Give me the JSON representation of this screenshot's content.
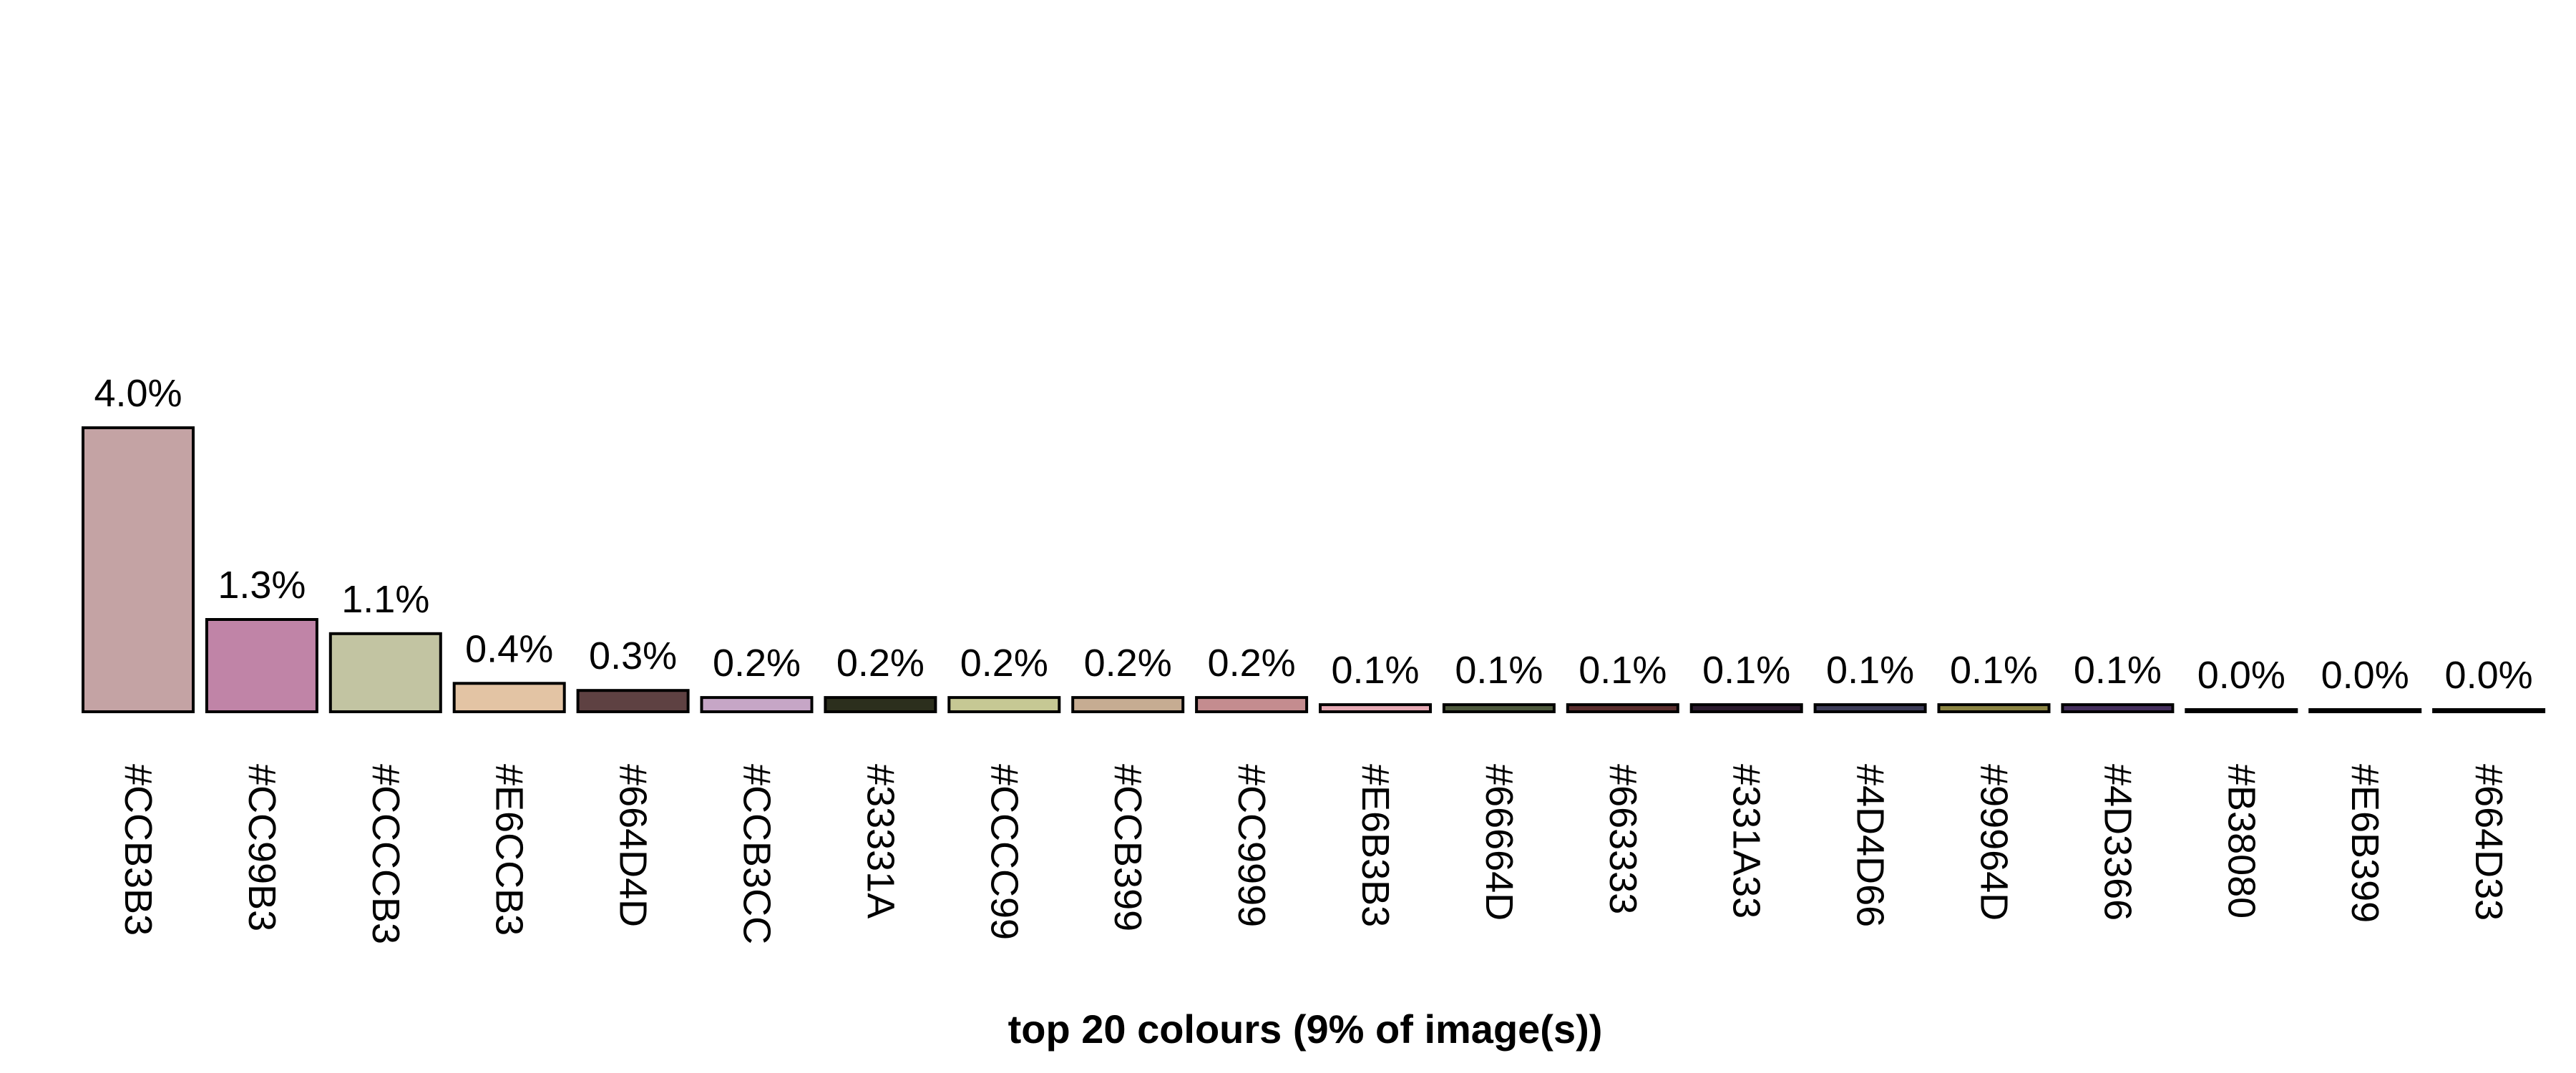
{
  "chart_data": {
    "type": "bar",
    "title": "top 20 colours (9% of image(s))",
    "xlabel": "",
    "ylabel": "",
    "ylim": [
      0,
      4.0
    ],
    "grid": false,
    "categories": [
      "#CCB3B3",
      "#CC99B3",
      "#CCCCB3",
      "#E6CCB3",
      "#664D4D",
      "#CCB3CC",
      "#33331A",
      "#CCCC99",
      "#CCB399",
      "#CC9999",
      "#E6B3B3",
      "#66664D",
      "#663333",
      "#331A33",
      "#4D4D66",
      "#99964D",
      "#4D3366",
      "#B38080",
      "#E6B399",
      "#664D33"
    ],
    "values": [
      4.0,
      1.3,
      1.1,
      0.4,
      0.3,
      0.2,
      0.2,
      0.2,
      0.2,
      0.2,
      0.1,
      0.1,
      0.1,
      0.1,
      0.1,
      0.1,
      0.1,
      0.0,
      0.0,
      0.0
    ],
    "value_labels": [
      "4.0%",
      "1.3%",
      "1.1%",
      "0.4%",
      "0.3%",
      "0.2%",
      "0.2%",
      "0.2%",
      "0.2%",
      "0.2%",
      "0.1%",
      "0.1%",
      "0.1%",
      "0.1%",
      "0.1%",
      "0.1%",
      "0.1%",
      "0.0%",
      "0.0%",
      "0.0%"
    ],
    "bar_colors": [
      "#C4A3A4",
      "#C084A7",
      "#C2C4A2",
      "#E3C4A4",
      "#5E4142",
      "#C6A6C6",
      "#2C2F1D",
      "#C6C894",
      "#C6AC92",
      "#C48C8F",
      "#E6A9B4",
      "#4F5A3D",
      "#5B2F2F",
      "#2C1B2E",
      "#3E3D59",
      "#8C8544",
      "#46305E",
      "#AD7A7E",
      "#E3AE90",
      "#5E4430"
    ]
  }
}
